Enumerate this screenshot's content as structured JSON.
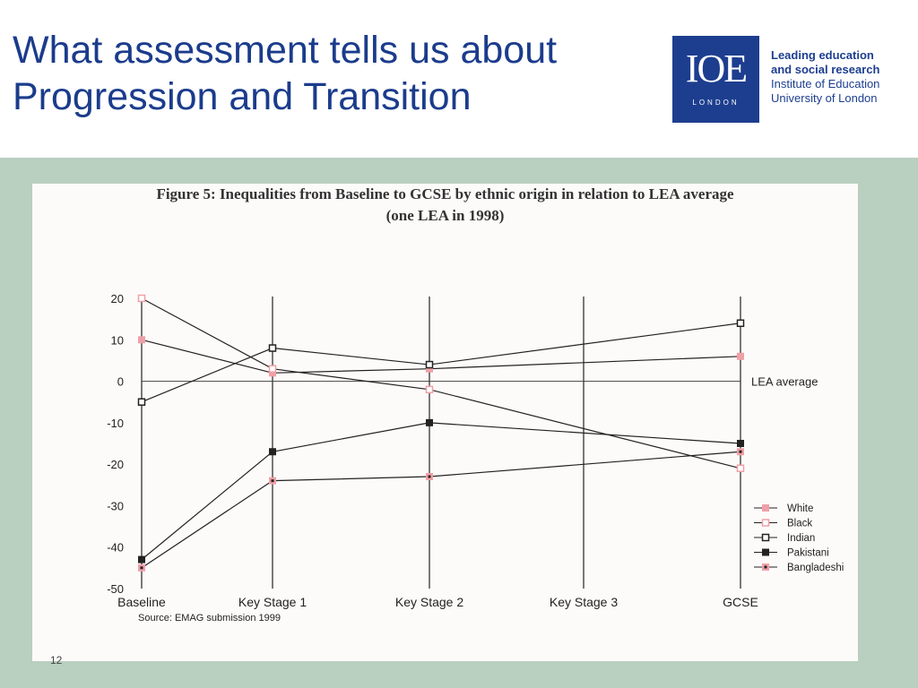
{
  "slide": {
    "title_line1": "What assessment tells us about",
    "title_line2": "Progression and Transition",
    "page_number": "12"
  },
  "logo": {
    "letters": "IOE",
    "sub": "LONDON",
    "tag_line1": "Leading education",
    "tag_line2": "and social research",
    "tag_line3": "Institute of Education",
    "tag_line4": "University of London"
  },
  "colors": {
    "title": "#1b3c8c",
    "logo_blue": "#1d3e8f",
    "band": "#b9cfc0",
    "pink": "#f0a0a6",
    "ink": "#222222"
  },
  "chart_data": {
    "type": "line",
    "title": "Figure 5: Inequalities from Baseline to GCSE by ethnic origin in relation to LEA average",
    "subtitle": "(one LEA in 1998)",
    "source": "Source: EMAG submission 1999",
    "reference_line": {
      "y": 0,
      "label": "LEA average"
    },
    "categories": [
      "Baseline",
      "Key Stage 1",
      "Key Stage 2",
      "Key Stage 3",
      "GCSE"
    ],
    "yticks": [
      "20",
      "10",
      "0",
      "-10",
      "-20",
      "-30",
      "-40",
      "-50"
    ],
    "ylim": [
      -50,
      20
    ],
    "legend_position": "bottom-right",
    "series": [
      {
        "name": "White",
        "marker": "filled-pink",
        "values": [
          10,
          2,
          3,
          null,
          6
        ]
      },
      {
        "name": "Black",
        "marker": "open-pink",
        "values": [
          20,
          3,
          -2,
          null,
          -21
        ]
      },
      {
        "name": "Indian",
        "marker": "open-black",
        "values": [
          -5,
          8,
          4,
          null,
          14
        ]
      },
      {
        "name": "Pakistani",
        "marker": "filled-black",
        "values": [
          -43,
          -17,
          -10,
          null,
          -15
        ]
      },
      {
        "name": "Bangladeshi",
        "marker": "pink-black-dot",
        "values": [
          -45,
          -24,
          -23,
          null,
          -17
        ]
      }
    ]
  }
}
